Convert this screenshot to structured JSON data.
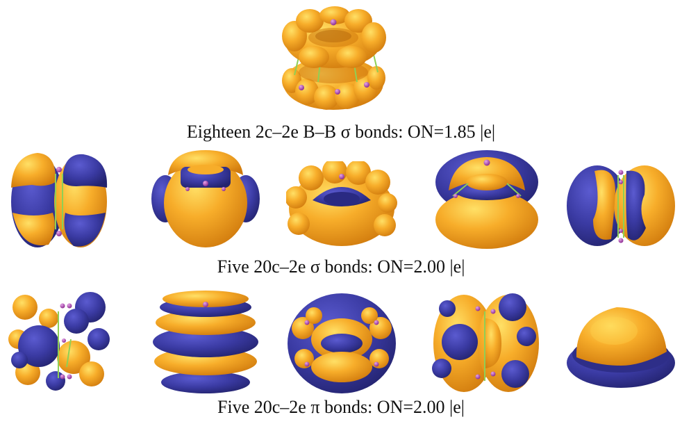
{
  "figure": {
    "colors": {
      "orange": "#f5a623",
      "orange_light": "#ffd44d",
      "orange_dark": "#d8830f",
      "blue": "#3d3da6",
      "blue_dark": "#26267a",
      "atom": "#b34ab6",
      "bond": "#8fcf55"
    },
    "panels": [
      {
        "caption": "Eighteen 2c–2e B–B σ bonds: ON=1.85 |e|",
        "orbital_count": 1,
        "icon": "sigma-bond-torus-icon"
      },
      {
        "caption": "Five 20c–2e σ bonds: ON=2.00 |e|",
        "orbital_count": 5,
        "icon": "sigma-delocalized-orbital-icon"
      },
      {
        "caption": "Five 20c–2e π bonds: ON=2.00 |e|",
        "orbital_count": 5,
        "icon": "pi-delocalized-orbital-icon"
      }
    ]
  }
}
